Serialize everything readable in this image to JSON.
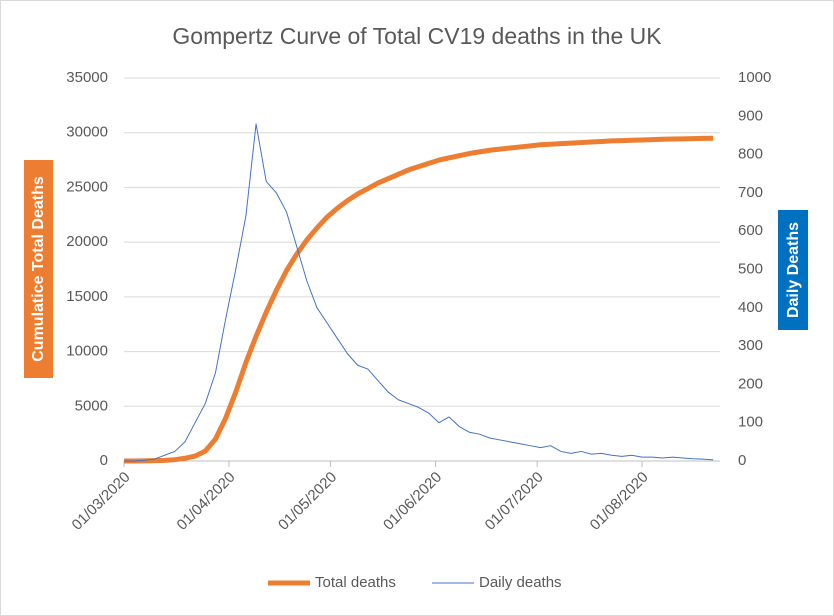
{
  "chart_data": {
    "type": "line",
    "title": "Gompertz Curve of Total CV19 deaths in the UK",
    "y_label": "Cumulatice Total Deaths",
    "y2_label": "Daily Deaths",
    "x": [
      "2020-03-01",
      "2020-03-04",
      "2020-03-07",
      "2020-03-10",
      "2020-03-13",
      "2020-03-16",
      "2020-03-19",
      "2020-03-22",
      "2020-03-25",
      "2020-03-28",
      "2020-03-31",
      "2020-04-03",
      "2020-04-06",
      "2020-04-09",
      "2020-04-12",
      "2020-04-15",
      "2020-04-18",
      "2020-04-21",
      "2020-04-24",
      "2020-04-27",
      "2020-04-30",
      "2020-05-03",
      "2020-05-06",
      "2020-05-09",
      "2020-05-12",
      "2020-05-15",
      "2020-05-18",
      "2020-05-21",
      "2020-05-24",
      "2020-05-27",
      "2020-05-30",
      "2020-06-02",
      "2020-06-05",
      "2020-06-08",
      "2020-06-11",
      "2020-06-14",
      "2020-06-17",
      "2020-06-20",
      "2020-06-23",
      "2020-06-26",
      "2020-06-29",
      "2020-07-02",
      "2020-07-05",
      "2020-07-08",
      "2020-07-11",
      "2020-07-14",
      "2020-07-17",
      "2020-07-20",
      "2020-07-23",
      "2020-07-26",
      "2020-07-29",
      "2020-08-01",
      "2020-08-04",
      "2020-08-07",
      "2020-08-10",
      "2020-08-13",
      "2020-08-16",
      "2020-08-19",
      "2020-08-22"
    ],
    "series": [
      {
        "name": "Total deaths",
        "color": "#ED7D31",
        "width": 5,
        "axis": "y",
        "values": [
          0,
          0,
          10,
          30,
          60,
          120,
          250,
          450,
          900,
          2000,
          3900,
          6300,
          9000,
          11400,
          13600,
          15600,
          17400,
          18900,
          20200,
          21300,
          22300,
          23100,
          23800,
          24400,
          24900,
          25400,
          25800,
          26200,
          26600,
          26900,
          27200,
          27500,
          27700,
          27900,
          28100,
          28250,
          28400,
          28500,
          28600,
          28700,
          28800,
          28900,
          28950,
          29000,
          29050,
          29100,
          29150,
          29200,
          29250,
          29280,
          29310,
          29340,
          29370,
          29400,
          29420,
          29440,
          29460,
          29480,
          29500
        ]
      },
      {
        "name": "Daily deaths",
        "color": "#4472C4",
        "width": 1,
        "axis": "y2",
        "values": [
          0,
          0,
          2,
          5,
          15,
          25,
          50,
          100,
          150,
          230,
          370,
          500,
          640,
          880,
          730,
          700,
          650,
          560,
          470,
          400,
          360,
          320,
          280,
          250,
          240,
          210,
          180,
          160,
          150,
          140,
          125,
          100,
          115,
          90,
          75,
          70,
          60,
          55,
          50,
          45,
          40,
          35,
          40,
          25,
          20,
          25,
          18,
          20,
          15,
          12,
          15,
          10,
          10,
          8,
          10,
          8,
          6,
          5,
          3
        ]
      }
    ],
    "xlim": [
      "2020-03-01",
      "2020-08-24"
    ],
    "xticks": [
      {
        "value": "2020-03-01",
        "label": "01/03/2020"
      },
      {
        "value": "2020-04-01",
        "label": "01/04/2020"
      },
      {
        "value": "2020-05-01",
        "label": "01/05/2020"
      },
      {
        "value": "2020-06-01",
        "label": "01/06/2020"
      },
      {
        "value": "2020-07-01",
        "label": "01/07/2020"
      },
      {
        "value": "2020-08-01",
        "label": "01/08/2020"
      }
    ],
    "ylim": [
      0,
      35000
    ],
    "yticks": [
      0,
      5000,
      10000,
      15000,
      20000,
      25000,
      30000,
      35000
    ],
    "y2lim": [
      0,
      1000
    ],
    "y2ticks": [
      0,
      100,
      200,
      300,
      400,
      500,
      600,
      700,
      800,
      900,
      1000
    ],
    "grid": true,
    "legend": "bottom"
  }
}
